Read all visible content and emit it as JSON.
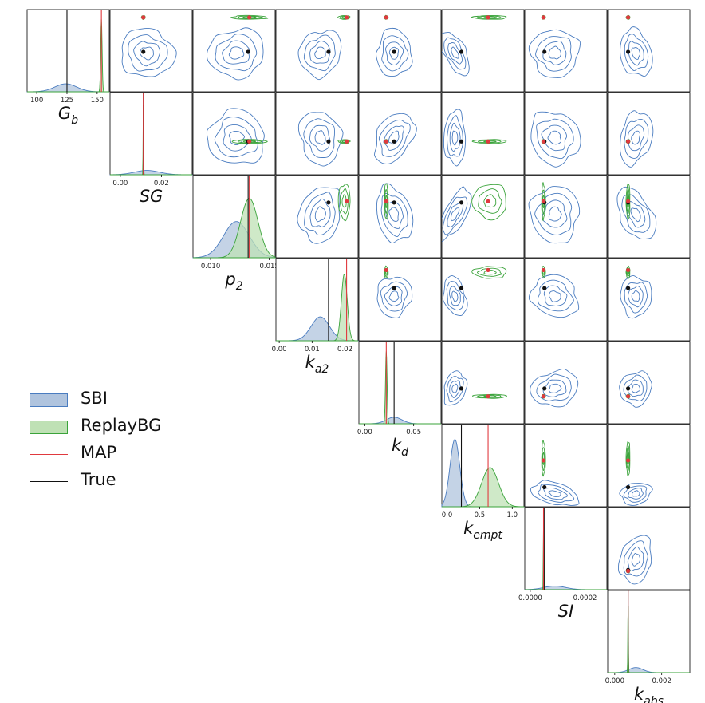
{
  "colors": {
    "sbi": "#4a7cc0",
    "sbi_fill": "#b0c4de",
    "replay": "#3aa33a",
    "replay_fill": "#bfe1b5",
    "map": "#e0393e",
    "true": "#111111"
  },
  "legend": [
    {
      "label": "SBI",
      "kind": "fill",
      "color": "#4a7cc0",
      "fill": "#b0c4de"
    },
    {
      "label": "ReplayBG",
      "kind": "fill",
      "color": "#3aa33a",
      "fill": "#bfe1b5"
    },
    {
      "label": "MAP",
      "kind": "line",
      "color": "#e0393e"
    },
    {
      "label": "True",
      "kind": "line",
      "color": "#111111"
    }
  ],
  "chart_data": {
    "type": "corner",
    "parameters": [
      {
        "key": "Gb",
        "base": "G",
        "sub": "b",
        "range": [
          92,
          160
        ],
        "ticks": [
          100,
          125,
          150
        ],
        "tick_labels": [
          "100",
          "125",
          "150"
        ],
        "true": 125,
        "map": 153.5,
        "sbi": {
          "mean": 124,
          "sd": 9,
          "h": 0.11
        },
        "replay": {
          "mean": 153.5,
          "sd": 0.6,
          "h": 1.0
        }
      },
      {
        "key": "SG",
        "base": "SG",
        "sub": "",
        "range": [
          -0.005,
          0.035
        ],
        "ticks": [
          0.0,
          0.02
        ],
        "tick_labels": [
          "0.00",
          "0.02"
        ],
        "true": 0.0112,
        "map": 0.0112,
        "sbi": {
          "mean": 0.013,
          "sd": 0.006,
          "h": 0.06
        },
        "replay": {
          "mean": 0.0112,
          "sd": 0.00012,
          "h": 1.0
        }
      },
      {
        "key": "p2",
        "base": "p",
        "sub": "2",
        "range": [
          0.0085,
          0.0155
        ],
        "ticks": [
          0.01,
          0.015
        ],
        "tick_labels": [
          "0.010",
          "0.015"
        ],
        "true": 0.0132,
        "map": 0.0133,
        "sbi": {
          "mean": 0.0122,
          "sd": 0.0011,
          "h": 0.5
        },
        "replay": {
          "mean": 0.0133,
          "sd": 0.00075,
          "h": 0.82
        }
      },
      {
        "key": "ka2",
        "base": "k",
        "sub": "a2",
        "range": [
          -0.001,
          0.024
        ],
        "ticks": [
          0.0,
          0.01,
          0.02
        ],
        "tick_labels": [
          "0.00",
          "0.01",
          "0.02"
        ],
        "true": 0.015,
        "map": 0.0205,
        "sbi": {
          "mean": 0.0125,
          "sd": 0.0028,
          "h": 0.33
        },
        "replay": {
          "mean": 0.0198,
          "sd": 0.0009,
          "h": 0.92
        }
      },
      {
        "key": "kd",
        "base": "k",
        "sub": "d",
        "range": [
          -0.006,
          0.078
        ],
        "ticks": [
          0.0,
          0.05
        ],
        "tick_labels": [
          "0.00",
          "0.05"
        ],
        "true": 0.03,
        "map": 0.022,
        "sbi": {
          "mean": 0.03,
          "sd": 0.008,
          "h": 0.09
        },
        "replay": {
          "mean": 0.022,
          "sd": 0.0008,
          "h": 1.0
        }
      },
      {
        "key": "kempt",
        "base": "k",
        "sub": "empt",
        "range": [
          -0.08,
          1.18
        ],
        "ticks": [
          0.0,
          0.5,
          1.0
        ],
        "tick_labels": [
          "0.0",
          "0.5",
          "1.0"
        ],
        "true": 0.22,
        "map": 0.63,
        "sbi": {
          "mean": 0.12,
          "sd": 0.075,
          "h": 0.93
        },
        "replay": {
          "mean": 0.66,
          "sd": 0.13,
          "h": 0.54
        }
      },
      {
        "key": "SI",
        "base": "SI",
        "sub": "",
        "range": [
          -2e-05,
          0.00028
        ],
        "ticks": [
          0.0,
          0.0002
        ],
        "tick_labels": [
          "0.0000",
          "0.0002"
        ],
        "true": 5.2e-05,
        "map": 4.85e-05,
        "sbi": {
          "mean": 9e-05,
          "sd": 4e-05,
          "h": 0.05
        },
        "replay": {
          "mean": 4.85e-05,
          "sd": 9e-07,
          "h": 1.0
        }
      },
      {
        "key": "kabs",
        "base": "k",
        "sub": "abs",
        "range": [
          -0.0003,
          0.0032
        ],
        "ticks": [
          0.0,
          0.002
        ],
        "tick_labels": [
          "0.000",
          "0.002"
        ],
        "true": 0.00057,
        "map": 0.00057,
        "sbi": {
          "mean": 0.0009,
          "sd": 0.0003,
          "h": 0.07
        },
        "replay": {
          "mean": 0.00057,
          "sd": 1.2e-05,
          "h": 1.0
        }
      }
    ],
    "layout": {
      "diagonal": "kde",
      "off_diagonal": "contour",
      "grid": false
    },
    "legend_position": "middle-left"
  }
}
